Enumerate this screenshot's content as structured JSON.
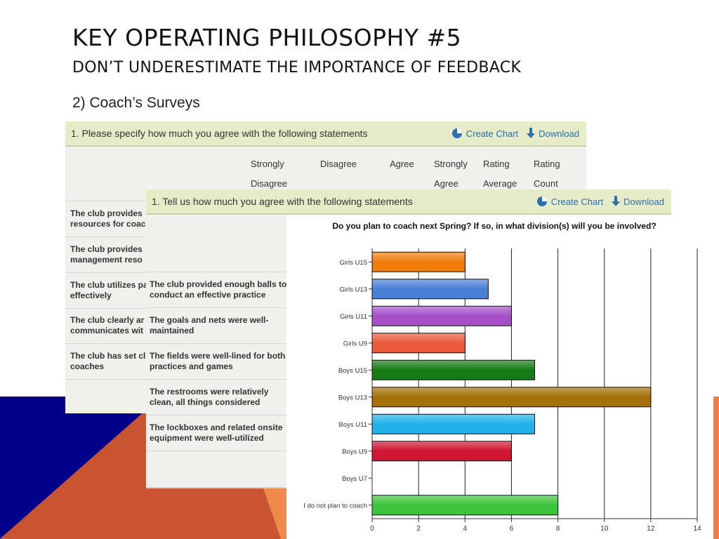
{
  "slide": {
    "title": "KEY OPERATING PHILOSOPHY #5",
    "subtitle": "DON’T UNDERESTIMATE THE IMPORTANCE OF FEEDBACK",
    "bullet": "2) Coach’s Surveys",
    "colors": {
      "navy": "#00008b",
      "rust": "#c85431",
      "orange": "#f08a4b"
    }
  },
  "survey1": {
    "header": "1. Please specify how much you agree with the following statements",
    "create_chart": "Create Chart",
    "download": "Download",
    "columns": [
      {
        "line1": "Strongly",
        "line2": "Disagree"
      },
      {
        "line1": "Disagree",
        "line2": ""
      },
      {
        "line1": "Agree",
        "line2": ""
      },
      {
        "line1": "Strongly",
        "line2": "Agree"
      },
      {
        "line1": "Rating",
        "line2": "Average"
      },
      {
        "line1": "Rating",
        "line2": "Count"
      }
    ],
    "rows": [
      {
        "line1": "The club provides",
        "line2": "resources for coac"
      },
      {
        "line1": "The club provides",
        "line2": "management reso"
      },
      {
        "line1": "The club utilizes pa",
        "line2": "effectively"
      },
      {
        "line1": "The club clearly ar",
        "line2": "communicates wit"
      },
      {
        "line1": "The club has set cl",
        "line2": "coaches"
      }
    ]
  },
  "survey2": {
    "header": "1. Tell us how much you agree with the following statements",
    "create_chart": "Create Chart",
    "download": "Download",
    "rows": [
      {
        "line1": "The club provided enough balls to",
        "line2": "conduct an effective practice"
      },
      {
        "line1": "The goals and nets were well-",
        "line2": "maintained"
      },
      {
        "line1": "The fields were well-lined for both",
        "line2": "practices and games"
      },
      {
        "line1": "The restrooms were relatively",
        "line2": "clean, all things considered"
      },
      {
        "line1": "The lockboxes and related onsite",
        "line2": "equipment were well-utilized"
      }
    ]
  },
  "chart_data": {
    "type": "bar",
    "orientation": "horizontal",
    "title": "Do you plan to coach next Spring?   If so, in what division(s) will you be involved?",
    "categories": [
      "Girls U15",
      "Girls U13",
      "Girls U11",
      "Girls U9",
      "Boys U15",
      "Boys U13",
      "Boys U11",
      "Boys U9",
      "Boys U7",
      "I do not plan to coach"
    ],
    "values": [
      4,
      5,
      6,
      4,
      7,
      12,
      7,
      6,
      0,
      8
    ],
    "colors": [
      "#f07d0a",
      "#4a7fd6",
      "#a64fc9",
      "#ea5a3a",
      "#157a15",
      "#a36f08",
      "#22b2ea",
      "#cf1531",
      "#888888",
      "#3cc43c"
    ],
    "xlim": [
      0,
      14
    ],
    "xticks": [
      "0",
      "2",
      "4",
      "6",
      "8",
      "10",
      "12",
      "14"
    ],
    "grid": true,
    "xlabel": "",
    "ylabel": ""
  }
}
